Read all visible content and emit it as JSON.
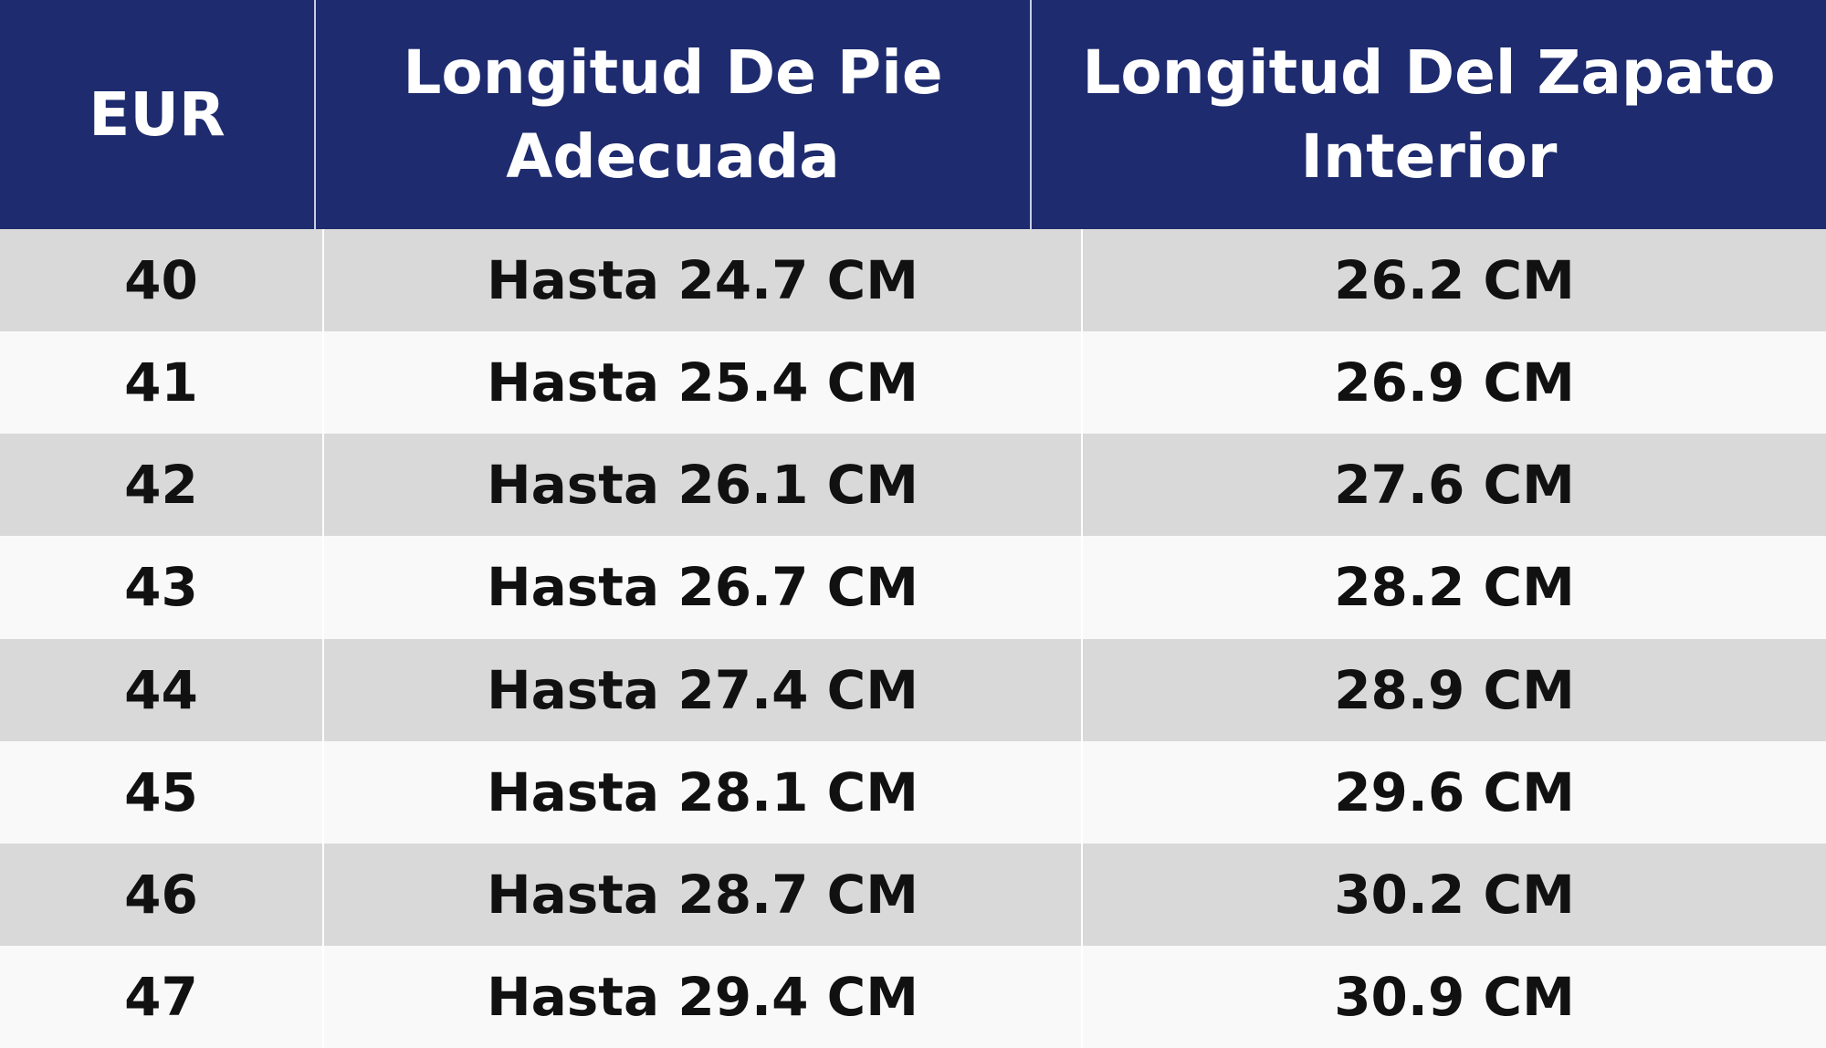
{
  "table": {
    "header": [
      "EUR",
      "Longitud De Pie Adecuada",
      "Longitud Del Zapato Interior"
    ],
    "rows": [
      [
        "40",
        "Hasta 24.7 CM",
        "26.2 CM"
      ],
      [
        "41",
        "Hasta 25.4 CM",
        "26.9 CM"
      ],
      [
        "42",
        "Hasta 26.1 CM",
        "27.6 CM"
      ],
      [
        "43",
        "Hasta 26.7 CM",
        "28.2 CM"
      ],
      [
        "44",
        "Hasta 27.4 CM",
        "28.9 CM"
      ],
      [
        "45",
        "Hasta 28.1 CM",
        "29.6 CM"
      ],
      [
        "46",
        "Hasta 28.7 CM",
        "30.2 CM"
      ],
      [
        "47",
        "Hasta 29.4 CM",
        "30.9 CM"
      ]
    ]
  }
}
